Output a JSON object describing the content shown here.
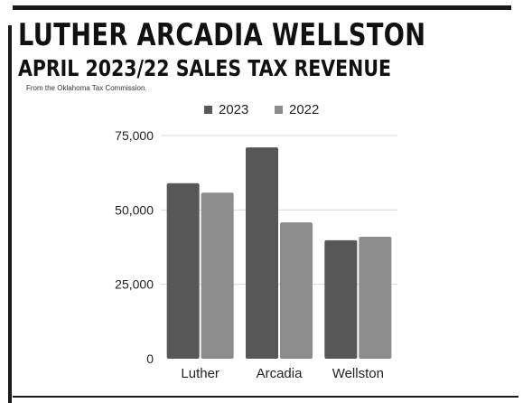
{
  "header": {
    "title": "LUTHER ARCADIA WELLSTON",
    "subtitle": "APRIL 2023/22 SALES TAX REVENUE",
    "source": "From the Oklahoma Tax Commission."
  },
  "chart_data": {
    "type": "bar",
    "categories": [
      "Luther",
      "Arcadia",
      "Wellston"
    ],
    "series": [
      {
        "name": "2023",
        "values": [
          59000,
          71000,
          39800
        ],
        "color": "#575757"
      },
      {
        "name": "2022",
        "values": [
          55800,
          45800,
          41000
        ],
        "color": "#8c8c8c"
      }
    ],
    "yticks": [
      "0",
      "25,000",
      "50,000",
      "75,000"
    ],
    "ytick_values": [
      0,
      25000,
      50000,
      75000
    ],
    "ylim": [
      0,
      75000
    ],
    "grid": true,
    "legend_position": "top"
  }
}
